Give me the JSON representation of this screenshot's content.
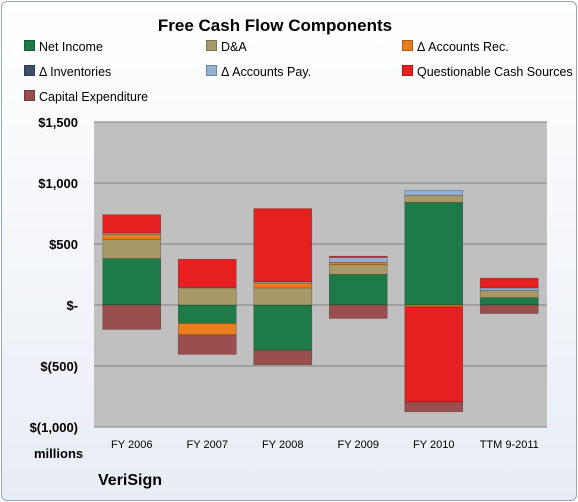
{
  "chart_data": {
    "type": "bar",
    "stacked": true,
    "title": "Free Cash Flow Components",
    "units_label": "millions",
    "company": "VeriSign",
    "categories": [
      "FY 2006",
      "FY 2007",
      "FY 2008",
      "FY 2009",
      "FY 2010",
      "TTM 9-2011"
    ],
    "ylim": [
      -1000,
      1500
    ],
    "y_ticks": [
      {
        "value": 1500,
        "label": "$1,500"
      },
      {
        "value": 1000,
        "label": "$1,000"
      },
      {
        "value": 500,
        "label": "$500"
      },
      {
        "value": 0,
        "label": "$-"
      },
      {
        "value": -500,
        "label": "$(500)"
      },
      {
        "value": -1000,
        "label": "$(1,000)"
      }
    ],
    "grid": true,
    "legend_position": "top",
    "series": [
      {
        "name": "Net Income",
        "color": "#1f7a4a",
        "values": [
          380,
          -150,
          -370,
          250,
          840,
          60
        ]
      },
      {
        "name": "D&A",
        "color": "#a89968",
        "values": [
          160,
          140,
          140,
          80,
          60,
          60
        ]
      },
      {
        "name": "Δ Accounts Rec.",
        "color": "#e87d1e",
        "values": [
          40,
          -95,
          40,
          20,
          -15,
          0
        ]
      },
      {
        "name": "Δ Inventories",
        "color": "#3c506b",
        "values": [
          0,
          0,
          0,
          0,
          0,
          0
        ]
      },
      {
        "name": "Δ Accounts Pay.",
        "color": "#94b0d4",
        "values": [
          10,
          5,
          10,
          40,
          40,
          20
        ]
      },
      {
        "name": "Questionable Cash Sources",
        "color": "#e62020",
        "values": [
          150,
          230,
          600,
          10,
          -780,
          80
        ]
      },
      {
        "name": "Capital Expenditure",
        "color": "#9a4e4e",
        "values": [
          -200,
          -160,
          -120,
          -110,
          -80,
          -70
        ]
      }
    ]
  }
}
